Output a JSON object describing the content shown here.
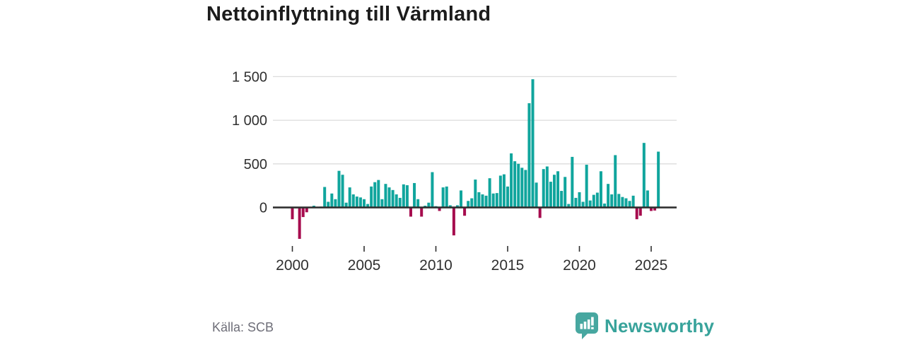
{
  "chart_data": {
    "type": "bar",
    "title": "Nettoinflyttning till Värmland",
    "frequency": "quarterly",
    "start_period": "2000Q1",
    "end_period": "2025Q3",
    "values": [
      -135,
      -10,
      -360,
      -110,
      -55,
      -5,
      20,
      5,
      10,
      235,
      65,
      160,
      95,
      420,
      375,
      55,
      230,
      150,
      125,
      115,
      95,
      40,
      240,
      290,
      315,
      95,
      270,
      230,
      200,
      150,
      110,
      265,
      255,
      -105,
      280,
      95,
      -105,
      20,
      55,
      405,
      15,
      -40,
      230,
      240,
      25,
      -320,
      25,
      195,
      -95,
      75,
      105,
      320,
      175,
      150,
      135,
      335,
      160,
      165,
      365,
      380,
      240,
      620,
      530,
      500,
      455,
      430,
      1195,
      1470,
      285,
      -120,
      440,
      470,
      295,
      375,
      415,
      190,
      350,
      40,
      580,
      110,
      175,
      65,
      490,
      80,
      145,
      170,
      415,
      45,
      270,
      150,
      600,
      155,
      120,
      105,
      75,
      135,
      -135,
      -95,
      740,
      195,
      -40,
      -35,
      640
    ],
    "y_ticks": [
      0,
      500,
      1000,
      1500
    ],
    "y_tick_labels": [
      "0",
      "500",
      "1 000",
      "1 500"
    ],
    "x_tick_years": [
      "2000",
      "2005",
      "2010",
      "2015",
      "2020",
      "2025"
    ],
    "ylim": [
      -430,
      1560
    ],
    "grid": true,
    "legend": "none",
    "colors": {
      "positive": "#10a59d",
      "negative": "#a60c4e",
      "baseline": "#2f2f2f",
      "grid": "#dcdcdc",
      "axis_text": "#303030"
    }
  },
  "footer": {
    "source": "Källa: SCB",
    "brand": "Newsworthy",
    "brand_color": "#38a39b",
    "brand_icon": "speech-bubble-bar-chart-icon"
  }
}
